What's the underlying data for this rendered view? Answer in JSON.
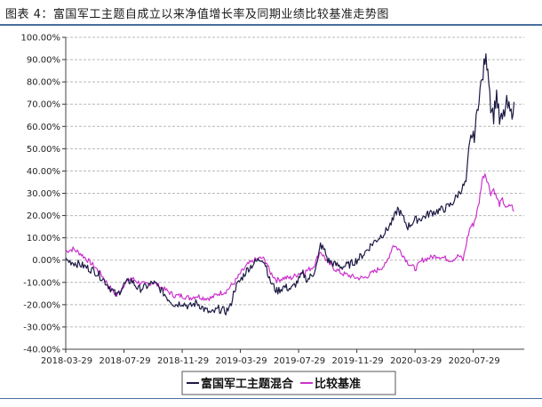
{
  "title": "图表 4：富国军工主题自成立以来净值增长率及同期业绩比较基准走势图",
  "colors": {
    "fund": "#1c1a45",
    "benchmark": "#cc33cc",
    "grid": "#b8b8b8"
  },
  "chart_data": {
    "type": "line",
    "title": "图表 4：富国军工主题自成立以来净值增长率及同期业绩比较基准走势图",
    "xlabel": "",
    "ylabel": "",
    "ylim": [
      -40,
      100
    ],
    "y_ticks": [
      "100.00%",
      "90.00%",
      "80.00%",
      "70.00%",
      "60.00%",
      "50.00%",
      "40.00%",
      "30.00%",
      "20.00%",
      "10.00%",
      "0.00%",
      "-10.00%",
      "-20.00%",
      "-30.00%",
      "-40.00%"
    ],
    "x_ticks": [
      "2018-03-29",
      "2018-07-29",
      "2018-11-29",
      "2019-03-29",
      "2019-07-29",
      "2019-11-29",
      "2020-03-29",
      "2020-07-29"
    ],
    "grid": true,
    "legend_position": "bottom",
    "series": [
      {
        "name": "富国军工主题混合",
        "points": [
          [
            0,
            0
          ],
          [
            1,
            -2
          ],
          [
            2,
            -5
          ],
          [
            2.5,
            -8
          ],
          [
            3,
            -12
          ],
          [
            3.5,
            -16
          ],
          [
            4,
            -11
          ],
          [
            4.5,
            -9
          ],
          [
            5,
            -13
          ],
          [
            5.5,
            -12
          ],
          [
            6,
            -10
          ],
          [
            6.5,
            -13
          ],
          [
            7,
            -17
          ],
          [
            7.5,
            -20
          ],
          [
            8,
            -19
          ],
          [
            8.5,
            -21
          ],
          [
            9,
            -19
          ],
          [
            9.5,
            -22
          ],
          [
            10,
            -24
          ],
          [
            10.5,
            -22
          ],
          [
            11,
            -23
          ],
          [
            11.3,
            -21
          ],
          [
            11.6,
            -13
          ],
          [
            12,
            -9
          ],
          [
            12.5,
            -4
          ],
          [
            13,
            -1
          ],
          [
            13.5,
            1
          ],
          [
            13.8,
            -3
          ],
          [
            14,
            -9
          ],
          [
            14.5,
            -14
          ],
          [
            15,
            -12
          ],
          [
            15.5,
            -13
          ],
          [
            16,
            -9
          ],
          [
            16.3,
            -6
          ],
          [
            16.6,
            -9
          ],
          [
            17,
            -6
          ],
          [
            17.3,
            -1
          ],
          [
            17.5,
            7
          ],
          [
            17.8,
            4
          ],
          [
            18,
            0
          ],
          [
            18.5,
            -2
          ],
          [
            19,
            -3
          ],
          [
            19.5,
            -2
          ],
          [
            20,
            0
          ],
          [
            20.5,
            3
          ],
          [
            21,
            7
          ],
          [
            21.5,
            10
          ],
          [
            22,
            13
          ],
          [
            22.5,
            18
          ],
          [
            22.8,
            23
          ],
          [
            23,
            21
          ],
          [
            23.5,
            15
          ],
          [
            24,
            18
          ],
          [
            24.5,
            19
          ],
          [
            25,
            21
          ],
          [
            25.5,
            22
          ],
          [
            26,
            23
          ],
          [
            26.5,
            25
          ],
          [
            27,
            30
          ],
          [
            27.5,
            35
          ],
          [
            27.7,
            48
          ],
          [
            27.9,
            57
          ],
          [
            28,
            54
          ],
          [
            28.2,
            62
          ],
          [
            28.4,
            75
          ],
          [
            28.6,
            80
          ],
          [
            28.8,
            90
          ],
          [
            29,
            88
          ],
          [
            29.2,
            70
          ],
          [
            29.4,
            65
          ],
          [
            29.6,
            75
          ],
          [
            29.8,
            62
          ],
          [
            30,
            63
          ],
          [
            30.3,
            70
          ],
          [
            30.6,
            65
          ],
          [
            30.8,
            71
          ]
        ]
      },
      {
        "name": "比较基准",
        "points": [
          [
            0,
            4
          ],
          [
            0.5,
            5
          ],
          [
            1,
            3
          ],
          [
            1.5,
            0
          ],
          [
            2,
            -3
          ],
          [
            2.5,
            -7
          ],
          [
            3,
            -12
          ],
          [
            3.5,
            -16
          ],
          [
            4,
            -11
          ],
          [
            4.5,
            -8
          ],
          [
            5,
            -10
          ],
          [
            5.5,
            -11
          ],
          [
            6,
            -10
          ],
          [
            6.5,
            -12
          ],
          [
            7,
            -14
          ],
          [
            7.5,
            -16
          ],
          [
            8,
            -16
          ],
          [
            8.5,
            -17
          ],
          [
            9,
            -16
          ],
          [
            9.5,
            -17
          ],
          [
            10,
            -17
          ],
          [
            10.5,
            -15
          ],
          [
            11,
            -14
          ],
          [
            11.6,
            -10
          ],
          [
            12,
            -6
          ],
          [
            12.5,
            -2
          ],
          [
            13,
            0
          ],
          [
            13.5,
            1
          ],
          [
            13.8,
            -1
          ],
          [
            14,
            -5
          ],
          [
            14.5,
            -9
          ],
          [
            15,
            -8
          ],
          [
            15.5,
            -8
          ],
          [
            16,
            -6
          ],
          [
            16.5,
            -5
          ],
          [
            17,
            -3
          ],
          [
            17.5,
            4
          ],
          [
            17.8,
            1
          ],
          [
            18,
            -1
          ],
          [
            18.5,
            -4
          ],
          [
            19,
            -6
          ],
          [
            19.5,
            -7
          ],
          [
            20,
            -8
          ],
          [
            20.5,
            -8
          ],
          [
            21,
            -6
          ],
          [
            21.5,
            -4
          ],
          [
            22,
            -2
          ],
          [
            22.5,
            7
          ],
          [
            23,
            4
          ],
          [
            23.5,
            -1
          ],
          [
            24,
            -4
          ],
          [
            24.5,
            0
          ],
          [
            25,
            1
          ],
          [
            25.5,
            2
          ],
          [
            26,
            1
          ],
          [
            26.5,
            0
          ],
          [
            27,
            2
          ],
          [
            27.3,
            0
          ],
          [
            27.6,
            10
          ],
          [
            27.8,
            15
          ],
          [
            28,
            16
          ],
          [
            28.2,
            20
          ],
          [
            28.4,
            26
          ],
          [
            28.6,
            36
          ],
          [
            28.8,
            39
          ],
          [
            29,
            35
          ],
          [
            29.2,
            30
          ],
          [
            29.4,
            32
          ],
          [
            29.6,
            28
          ],
          [
            29.8,
            25
          ],
          [
            30,
            27
          ],
          [
            30.3,
            23
          ],
          [
            30.6,
            25
          ],
          [
            30.8,
            22
          ]
        ]
      }
    ]
  }
}
